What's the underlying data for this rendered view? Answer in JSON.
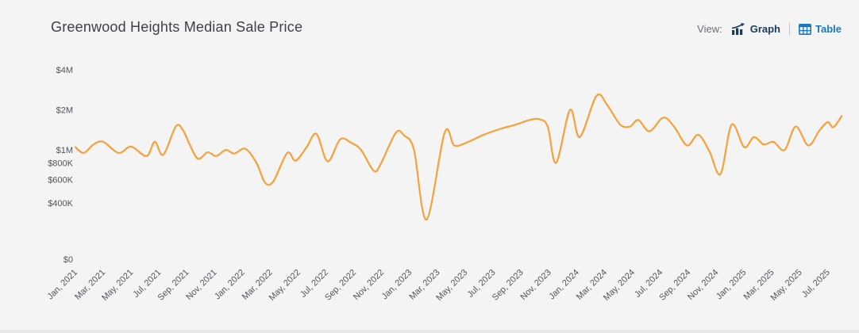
{
  "header": {
    "title": "Greenwood Heights Median Sale Price",
    "view_label": "View:",
    "graph_label": "Graph",
    "table_label": "Table"
  },
  "colors": {
    "background": "#f4f4f5",
    "line": "#f6a13a",
    "graph_button": "#1a3a5a",
    "table_button": "#1a79be",
    "axis_text": "#50555a"
  },
  "chart_data": {
    "type": "line",
    "title": "Greenwood Heights Median Sale Price",
    "series_name": "Median Sale Price",
    "unit": "USD thousands",
    "y_scale": "log",
    "grid": "off",
    "legend": "none",
    "y_ticks": [
      {
        "label": "$4M",
        "value": 4000
      },
      {
        "label": "$2M",
        "value": 2000
      },
      {
        "label": "$1M",
        "value": 1000
      },
      {
        "label": "$800K",
        "value": 800
      },
      {
        "label": "$600K",
        "value": 600
      },
      {
        "label": "$400K",
        "value": 400
      },
      {
        "label": "$0",
        "value": 0
      }
    ],
    "x_tick_labels": [
      "Jan, 2021",
      "Mar, 2021",
      "May, 2021",
      "Jul, 2021",
      "Sep, 2021",
      "Nov, 2021",
      "Jan, 2022",
      "Mar, 2022",
      "May, 2022",
      "Jul, 2022",
      "Sep, 2022",
      "Nov, 2022",
      "Jan, 2023",
      "Mar, 2023",
      "May, 2023",
      "Jul, 2023",
      "Sep, 2023",
      "Nov, 2023",
      "Jan, 2024",
      "Mar, 2024",
      "May, 2024",
      "Jul, 2024",
      "Sep, 2024",
      "Nov, 2024",
      "Jan, 2025",
      "Mar, 2025",
      "May, 2025",
      "Jul, 2025"
    ],
    "x_tick_months": [
      0,
      2,
      4,
      6,
      8,
      10,
      12,
      14,
      16,
      18,
      20,
      22,
      24,
      26,
      28,
      30,
      32,
      34,
      36,
      38,
      40,
      42,
      44,
      46,
      48,
      50,
      52,
      54
    ],
    "points": [
      [
        0,
        1050
      ],
      [
        0.6,
        950
      ],
      [
        1.3,
        1100
      ],
      [
        2,
        1150
      ],
      [
        3.1,
        950
      ],
      [
        4,
        1060
      ],
      [
        5.1,
        900
      ],
      [
        5.7,
        1150
      ],
      [
        6.3,
        920
      ],
      [
        7.2,
        1500
      ],
      [
        7.7,
        1420
      ],
      [
        8.2,
        1100
      ],
      [
        8.8,
        860
      ],
      [
        9.5,
        960
      ],
      [
        10.1,
        900
      ],
      [
        10.8,
        1000
      ],
      [
        11.4,
        940
      ],
      [
        12.2,
        1020
      ],
      [
        13,
        800
      ],
      [
        13.6,
        570
      ],
      [
        14.2,
        580
      ],
      [
        15.2,
        950
      ],
      [
        15.8,
        830
      ],
      [
        16.6,
        1050
      ],
      [
        17.3,
        1320
      ],
      [
        18.1,
        820
      ],
      [
        19,
        1200
      ],
      [
        19.8,
        1130
      ],
      [
        20.5,
        1000
      ],
      [
        21.4,
        700
      ],
      [
        21.9,
        780
      ],
      [
        23,
        1350
      ],
      [
        23.6,
        1280
      ],
      [
        24.3,
        1000
      ],
      [
        25.2,
        300
      ],
      [
        26.5,
        1350
      ],
      [
        27.2,
        1080
      ],
      [
        28.2,
        1150
      ],
      [
        29.3,
        1300
      ],
      [
        30.6,
        1450
      ],
      [
        31.6,
        1550
      ],
      [
        32.6,
        1680
      ],
      [
        33.3,
        1700
      ],
      [
        33.9,
        1500
      ],
      [
        34.5,
        800
      ],
      [
        35.5,
        2000
      ],
      [
        36.2,
        1250
      ],
      [
        37.4,
        2550
      ],
      [
        38.2,
        2150
      ],
      [
        39.1,
        1550
      ],
      [
        39.8,
        1500
      ],
      [
        40.4,
        1680
      ],
      [
        41.2,
        1380
      ],
      [
        42.2,
        1750
      ],
      [
        43,
        1480
      ],
      [
        43.9,
        1080
      ],
      [
        44.7,
        1300
      ],
      [
        45.5,
        980
      ],
      [
        46.3,
        660
      ],
      [
        47.1,
        1550
      ],
      [
        48,
        1050
      ],
      [
        48.7,
        1250
      ],
      [
        49.4,
        1100
      ],
      [
        50.1,
        1150
      ],
      [
        50.9,
        1000
      ],
      [
        51.7,
        1500
      ],
      [
        52.6,
        1080
      ],
      [
        53.4,
        1400
      ],
      [
        54,
        1620
      ],
      [
        54.4,
        1480
      ],
      [
        55,
        1800
      ]
    ]
  }
}
